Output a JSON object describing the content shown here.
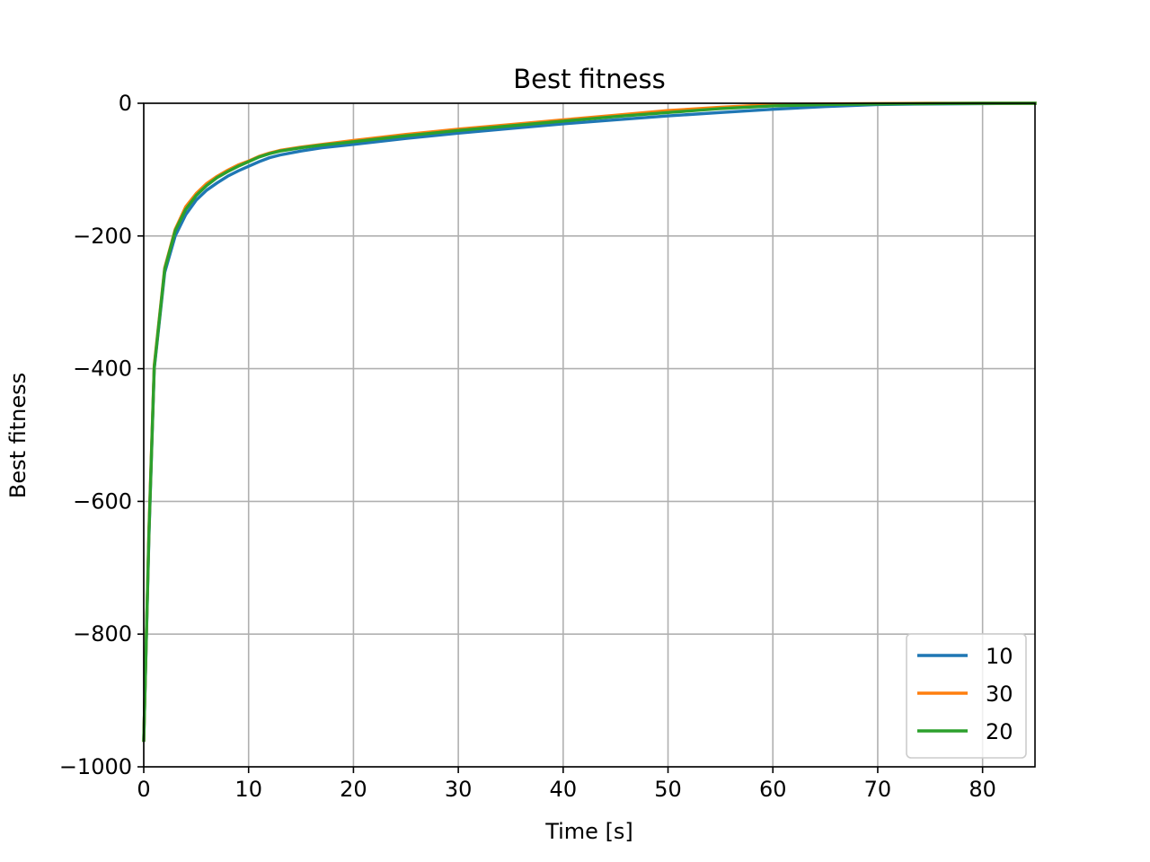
{
  "chart_data": {
    "type": "line",
    "title": "Best fitness",
    "xlabel": "Time [s]",
    "ylabel": "Best fitness",
    "xlim": [
      0,
      85
    ],
    "ylim": [
      -1000,
      0
    ],
    "xticks": [
      0,
      10,
      20,
      30,
      40,
      50,
      60,
      70,
      80
    ],
    "xtick_labels": [
      "0",
      "10",
      "20",
      "30",
      "40",
      "50",
      "60",
      "70",
      "80"
    ],
    "yticks": [
      0,
      -200,
      -400,
      -600,
      -800,
      -1000
    ],
    "ytick_labels": [
      "0",
      "−200",
      "−400",
      "−600",
      "−800",
      "−1000"
    ],
    "grid": true,
    "legend_position": "lower-right",
    "series": [
      {
        "name": "10",
        "color": "#1f77b4",
        "x": [
          0,
          0.5,
          1,
          2,
          3,
          4,
          5,
          6,
          7,
          8,
          9,
          10,
          11,
          12,
          13,
          15,
          17,
          20,
          25,
          30,
          35,
          40,
          45,
          50,
          55,
          60,
          65,
          70,
          75,
          80,
          85
        ],
        "y": [
          -960,
          -650,
          -400,
          -255,
          -200,
          -168,
          -146,
          -131,
          -120,
          -110,
          -102,
          -95,
          -88,
          -82,
          -78,
          -72,
          -67,
          -62,
          -53,
          -45,
          -38,
          -31,
          -25,
          -19,
          -14,
          -9,
          -5,
          -2,
          -1,
          -0.5,
          0
        ]
      },
      {
        "name": "30",
        "color": "#ff7f0e",
        "x": [
          0,
          0.5,
          1,
          2,
          3,
          4,
          5,
          6,
          7,
          8,
          9,
          10,
          11,
          12,
          13,
          15,
          17,
          20,
          25,
          30,
          35,
          40,
          45,
          50,
          55,
          60,
          65,
          70,
          75,
          80,
          85
        ],
        "y": [
          -960,
          -640,
          -395,
          -248,
          -190,
          -156,
          -136,
          -121,
          -110,
          -101,
          -93,
          -87,
          -80,
          -75,
          -71,
          -66,
          -62,
          -56,
          -47,
          -39,
          -32,
          -25,
          -18,
          -11,
          -6,
          -2,
          -1,
          -0.5,
          0,
          0,
          0
        ]
      },
      {
        "name": "20",
        "color": "#2ca02c",
        "x": [
          0,
          0.5,
          1,
          2,
          3,
          4,
          5,
          6,
          7,
          8,
          9,
          10,
          11,
          12,
          13,
          15,
          17,
          20,
          25,
          30,
          35,
          40,
          45,
          50,
          55,
          60,
          65,
          70,
          75,
          80,
          85
        ],
        "y": [
          -960,
          -645,
          -398,
          -250,
          -192,
          -160,
          -139,
          -124,
          -112,
          -103,
          -95,
          -88,
          -81,
          -76,
          -72,
          -67,
          -63,
          -58,
          -49,
          -41,
          -34,
          -27,
          -20,
          -14,
          -8,
          -4,
          -2,
          -1,
          -0.5,
          0,
          0
        ]
      }
    ]
  }
}
